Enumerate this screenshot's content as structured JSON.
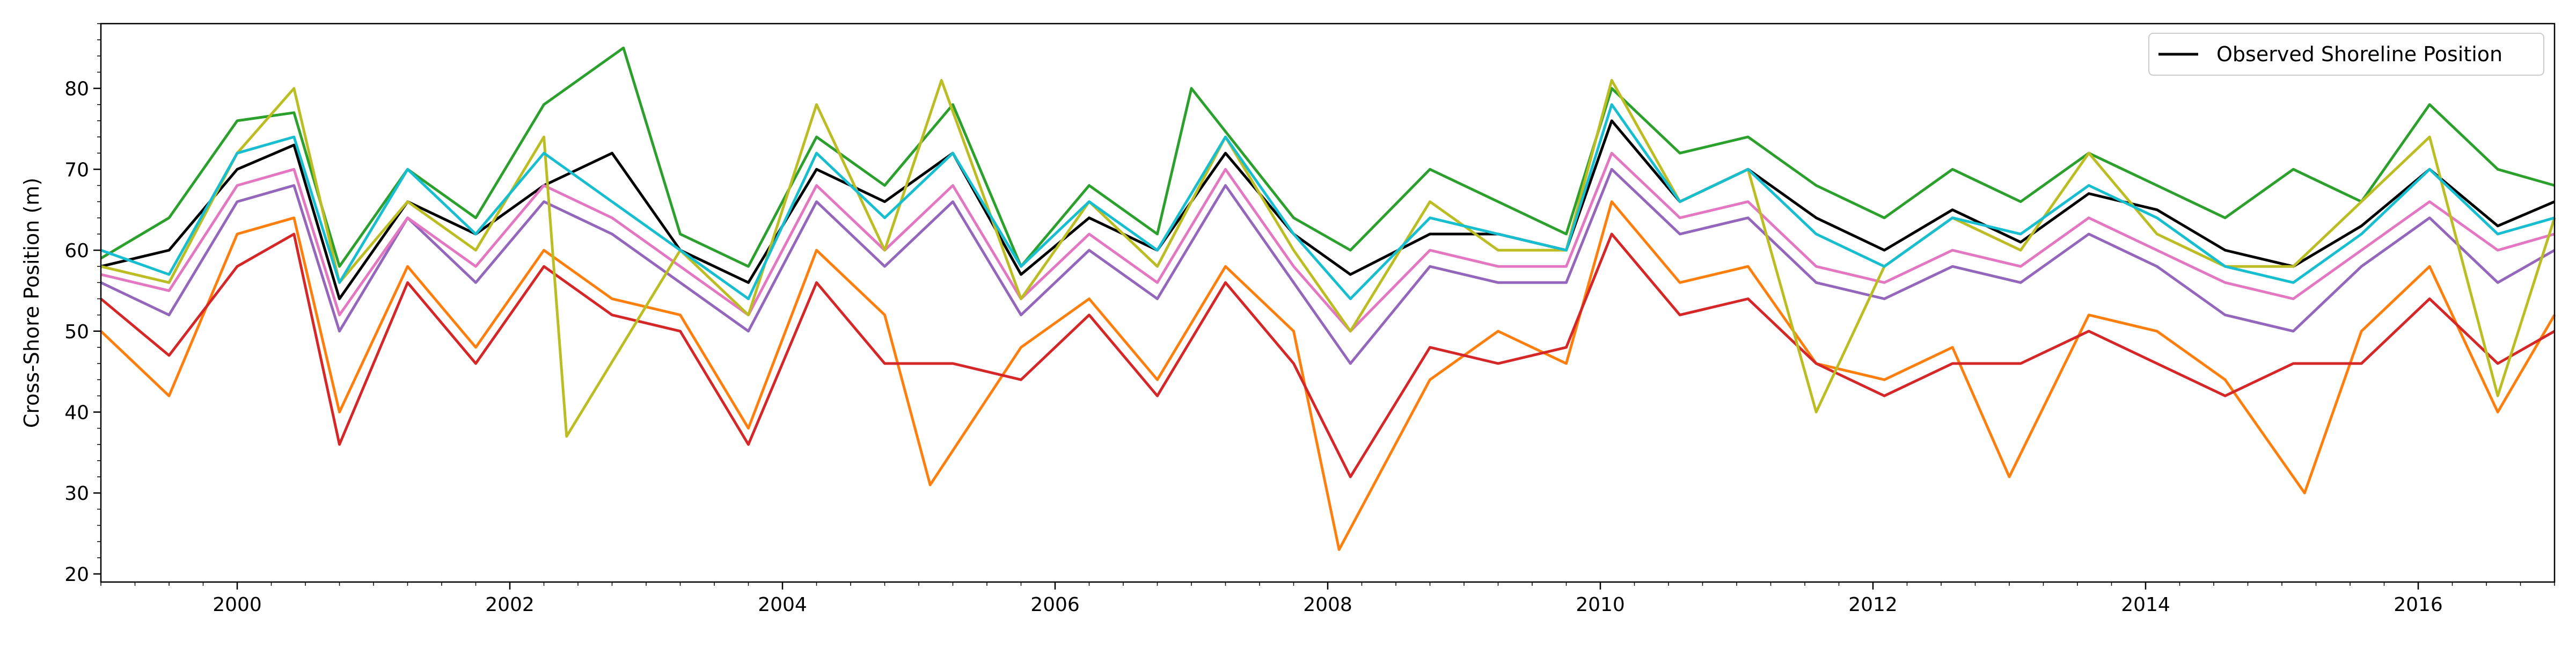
{
  "chart_data": {
    "type": "line",
    "title": "",
    "xlabel": "",
    "ylabel": "Cross-Shore Position (m)",
    "xlim": [
      "1999-01-01",
      "2017-01-01"
    ],
    "ylim": [
      19,
      88
    ],
    "x_ticks": [
      "2000",
      "2002",
      "2004",
      "2006",
      "2008",
      "2010",
      "2012",
      "2014",
      "2016"
    ],
    "y_ticks": [
      20,
      30,
      40,
      50,
      60,
      70,
      80
    ],
    "grid": false,
    "legend": {
      "placement": "top-right",
      "entries": [
        "Observed Shoreline Position"
      ]
    },
    "series": [
      {
        "name": "Observed Shoreline Position",
        "color": "#000000",
        "x": [
          "1999-01",
          "1999-07",
          "2000-01",
          "2000-06",
          "2000-10",
          "2001-04",
          "2001-10",
          "2002-04",
          "2002-10",
          "2003-04",
          "2003-10",
          "2004-04",
          "2004-10",
          "2005-04",
          "2005-10",
          "2006-04",
          "2006-10",
          "2007-04",
          "2007-10",
          "2008-03",
          "2008-10",
          "2009-04",
          "2009-10",
          "2010-02",
          "2010-08",
          "2011-02",
          "2011-08",
          "2012-02",
          "2012-08",
          "2013-02",
          "2013-08",
          "2014-02",
          "2014-08",
          "2015-02",
          "2015-08",
          "2016-02",
          "2016-08",
          "2017-01"
        ],
        "y": [
          58,
          60,
          70,
          73,
          54,
          66,
          62,
          68,
          72,
          60,
          56,
          70,
          66,
          72,
          57,
          64,
          60,
          72,
          62,
          57,
          62,
          62,
          60,
          76,
          66,
          70,
          64,
          60,
          65,
          61,
          67,
          65,
          60,
          58,
          63,
          70,
          63,
          66
        ]
      },
      {
        "color": "#ff7f0e",
        "x": [
          "1999-01",
          "1999-07",
          "2000-01",
          "2000-06",
          "2000-10",
          "2001-04",
          "2001-10",
          "2002-04",
          "2002-10",
          "2003-04",
          "2003-10",
          "2004-04",
          "2004-10",
          "2005-02",
          "2005-10",
          "2006-04",
          "2006-10",
          "2007-04",
          "2007-10",
          "2008-02",
          "2008-10",
          "2009-04",
          "2009-10",
          "2010-02",
          "2010-08",
          "2011-02",
          "2011-08",
          "2012-02",
          "2012-08",
          "2013-01",
          "2013-08",
          "2014-02",
          "2014-08",
          "2015-03",
          "2015-08",
          "2016-02",
          "2016-08",
          "2017-01"
        ],
        "y": [
          50,
          42,
          62,
          64,
          40,
          58,
          48,
          60,
          54,
          52,
          38,
          60,
          52,
          31,
          48,
          54,
          44,
          58,
          50,
          23,
          44,
          50,
          46,
          66,
          56,
          58,
          46,
          44,
          48,
          32,
          52,
          50,
          44,
          30,
          50,
          58,
          40,
          52
        ]
      },
      {
        "color": "#2ca02c",
        "x": [
          "1999-01",
          "1999-07",
          "2000-01",
          "2000-06",
          "2000-10",
          "2001-04",
          "2001-10",
          "2002-04",
          "2002-11",
          "2003-04",
          "2003-10",
          "2004-04",
          "2004-10",
          "2005-04",
          "2005-10",
          "2006-04",
          "2006-10",
          "2007-01",
          "2007-10",
          "2008-03",
          "2008-10",
          "2009-04",
          "2009-10",
          "2010-02",
          "2010-08",
          "2011-02",
          "2011-08",
          "2012-02",
          "2012-08",
          "2013-02",
          "2013-08",
          "2014-02",
          "2014-08",
          "2015-02",
          "2015-08",
          "2016-02",
          "2016-08",
          "2017-01"
        ],
        "y": [
          59,
          64,
          76,
          77,
          58,
          70,
          64,
          78,
          85,
          62,
          58,
          74,
          68,
          78,
          58,
          68,
          62,
          80,
          64,
          60,
          70,
          66,
          62,
          80,
          72,
          74,
          68,
          64,
          70,
          66,
          72,
          68,
          64,
          70,
          66,
          78,
          70,
          68
        ]
      },
      {
        "color": "#d62728",
        "x": [
          "1999-01",
          "1999-07",
          "2000-01",
          "2000-06",
          "2000-10",
          "2001-04",
          "2001-10",
          "2002-04",
          "2002-10",
          "2003-04",
          "2003-10",
          "2004-04",
          "2004-10",
          "2005-04",
          "2005-10",
          "2006-04",
          "2006-10",
          "2007-04",
          "2007-10",
          "2008-03",
          "2008-10",
          "2009-04",
          "2009-10",
          "2010-02",
          "2010-08",
          "2011-02",
          "2011-08",
          "2012-02",
          "2012-08",
          "2013-02",
          "2013-08",
          "2014-02",
          "2014-08",
          "2015-02",
          "2015-08",
          "2016-02",
          "2016-08",
          "2017-01"
        ],
        "y": [
          54,
          47,
          58,
          62,
          36,
          56,
          46,
          58,
          52,
          50,
          36,
          56,
          46,
          46,
          44,
          52,
          42,
          56,
          46,
          32,
          48,
          46,
          48,
          62,
          52,
          54,
          46,
          42,
          46,
          46,
          50,
          46,
          42,
          46,
          46,
          54,
          46,
          50
        ]
      },
      {
        "color": "#9467bd",
        "x": [
          "1999-01",
          "1999-07",
          "2000-01",
          "2000-06",
          "2000-10",
          "2001-04",
          "2001-10",
          "2002-04",
          "2002-10",
          "2003-04",
          "2003-10",
          "2004-04",
          "2004-10",
          "2005-04",
          "2005-10",
          "2006-04",
          "2006-10",
          "2007-04",
          "2007-10",
          "2008-03",
          "2008-10",
          "2009-04",
          "2009-10",
          "2010-02",
          "2010-08",
          "2011-02",
          "2011-08",
          "2012-02",
          "2012-08",
          "2013-02",
          "2013-08",
          "2014-02",
          "2014-08",
          "2015-02",
          "2015-08",
          "2016-02",
          "2016-08",
          "2017-01"
        ],
        "y": [
          56,
          52,
          66,
          68,
          50,
          64,
          56,
          66,
          62,
          56,
          50,
          66,
          58,
          66,
          52,
          60,
          54,
          68,
          56,
          46,
          58,
          56,
          56,
          70,
          62,
          64,
          56,
          54,
          58,
          56,
          62,
          58,
          52,
          50,
          58,
          64,
          56,
          60
        ]
      },
      {
        "color": "#e377c2",
        "x": [
          "1999-01",
          "1999-07",
          "2000-01",
          "2000-06",
          "2000-10",
          "2001-04",
          "2001-10",
          "2002-04",
          "2002-10",
          "2003-04",
          "2003-10",
          "2004-04",
          "2004-10",
          "2005-04",
          "2005-10",
          "2006-04",
          "2006-10",
          "2007-04",
          "2007-10",
          "2008-03",
          "2008-10",
          "2009-04",
          "2009-10",
          "2010-02",
          "2010-08",
          "2011-02",
          "2011-08",
          "2012-02",
          "2012-08",
          "2013-02",
          "2013-08",
          "2014-02",
          "2014-08",
          "2015-02",
          "2015-08",
          "2016-02",
          "2016-08",
          "2017-01"
        ],
        "y": [
          57,
          55,
          68,
          70,
          52,
          64,
          58,
          68,
          64,
          58,
          52,
          68,
          60,
          68,
          54,
          62,
          56,
          70,
          58,
          50,
          60,
          58,
          58,
          72,
          64,
          66,
          58,
          56,
          60,
          58,
          64,
          60,
          56,
          54,
          60,
          66,
          60,
          62
        ]
      },
      {
        "color": "#bcbd22",
        "x": [
          "1999-01",
          "1999-07",
          "2000-01",
          "2000-06",
          "2000-10",
          "2001-04",
          "2001-10",
          "2002-04",
          "2002-06",
          "2003-04",
          "2003-10",
          "2004-04",
          "2004-10",
          "2005-03",
          "2005-10",
          "2006-04",
          "2006-10",
          "2007-04",
          "2007-10",
          "2008-03",
          "2008-10",
          "2009-04",
          "2009-10",
          "2010-02",
          "2010-08",
          "2011-02",
          "2011-08",
          "2012-02",
          "2012-08",
          "2013-02",
          "2013-08",
          "2014-02",
          "2014-08",
          "2015-02",
          "2015-08",
          "2016-02",
          "2016-08",
          "2017-01"
        ],
        "y": [
          58,
          56,
          72,
          80,
          56,
          66,
          60,
          74,
          37,
          60,
          52,
          78,
          60,
          81,
          54,
          66,
          58,
          74,
          60,
          50,
          66,
          60,
          60,
          81,
          66,
          70,
          40,
          58,
          64,
          60,
          72,
          62,
          58,
          58,
          66,
          74,
          42,
          64
        ]
      },
      {
        "color": "#17becf",
        "x": [
          "1999-01",
          "1999-07",
          "2000-01",
          "2000-06",
          "2000-10",
          "2001-04",
          "2001-10",
          "2002-04",
          "2002-10",
          "2003-04",
          "2003-10",
          "2004-04",
          "2004-10",
          "2005-04",
          "2005-10",
          "2006-04",
          "2006-10",
          "2007-04",
          "2007-10",
          "2008-03",
          "2008-10",
          "2009-04",
          "2009-10",
          "2010-02",
          "2010-08",
          "2011-02",
          "2011-08",
          "2012-02",
          "2012-08",
          "2013-02",
          "2013-08",
          "2014-02",
          "2014-08",
          "2015-02",
          "2015-08",
          "2016-02",
          "2016-08",
          "2017-01"
        ],
        "y": [
          60,
          57,
          72,
          74,
          56,
          70,
          62,
          72,
          66,
          60,
          54,
          72,
          64,
          72,
          58,
          66,
          60,
          74,
          62,
          54,
          64,
          62,
          60,
          78,
          66,
          70,
          62,
          58,
          64,
          62,
          68,
          64,
          58,
          56,
          62,
          70,
          62,
          64
        ]
      }
    ]
  }
}
